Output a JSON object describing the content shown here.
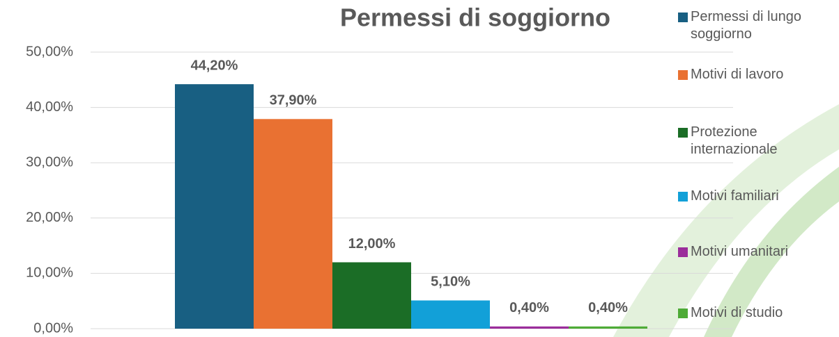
{
  "chart_data": {
    "type": "bar",
    "title": "Permessi di soggiorno",
    "categories": [
      null
    ],
    "series": [
      {
        "name": "Permessi di lungo soggiorno",
        "color": "#185f82",
        "values": [
          44.2
        ],
        "value_labels": [
          "44,20%"
        ]
      },
      {
        "name": "Motivi di lavoro",
        "color": "#e97132",
        "values": [
          37.9
        ],
        "value_labels": [
          "37,90%"
        ]
      },
      {
        "name": "Protezione internazionale",
        "color": "#1b6d26",
        "values": [
          12.0
        ],
        "value_labels": [
          "12,00%"
        ]
      },
      {
        "name": "Motivi familiari",
        "color": "#12a0d8",
        "values": [
          5.1
        ],
        "value_labels": [
          "5,10%"
        ]
      },
      {
        "name": "Motivi umanitari",
        "color": "#9b2d9b",
        "values": [
          0.4
        ],
        "value_labels": [
          "0,40%"
        ]
      },
      {
        "name": "Motivi di studio",
        "color": "#4eab37",
        "values": [
          0.4
        ],
        "value_labels": [
          "0,40%"
        ]
      }
    ],
    "ylim": [
      0,
      50
    ],
    "yticks": [
      {
        "value": 0,
        "label": "0,00%"
      },
      {
        "value": 10,
        "label": "10,00%"
      },
      {
        "value": 20,
        "label": "20,00%"
      },
      {
        "value": 30,
        "label": "30,00%"
      },
      {
        "value": 40,
        "label": "40,00%"
      },
      {
        "value": 50,
        "label": "50,00%"
      }
    ],
    "grid": true,
    "legend": "right"
  }
}
